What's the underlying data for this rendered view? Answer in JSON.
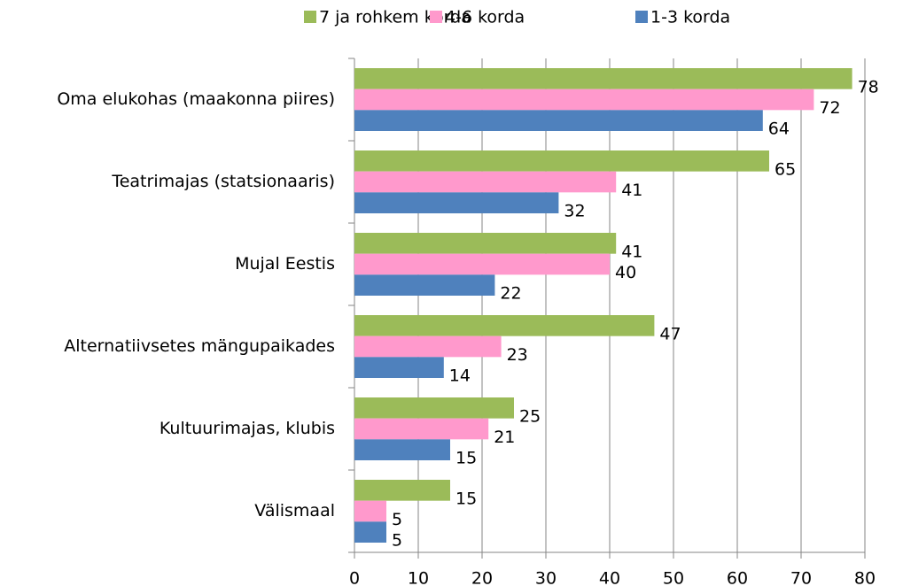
{
  "chart_data": {
    "type": "hbar",
    "categories": [
      "Oma elukohas (maakonna piires)",
      "Teatrimajas (statsionaaris)",
      "Mujal Eestis",
      "Alternatiivsetes mängupaikades",
      "Kultuurimajas, klubis",
      "Välismaal"
    ],
    "series": [
      {
        "name": "7 ja rohkem korda",
        "color": "#9bbb59",
        "values": [
          78,
          65,
          41,
          47,
          25,
          15
        ]
      },
      {
        "name": "4-6 korda",
        "color": "#ff99cc",
        "values": [
          72,
          41,
          40,
          23,
          21,
          5
        ]
      },
      {
        "name": "1-3 korda",
        "color": "#4f81bd",
        "values": [
          64,
          32,
          22,
          14,
          15,
          5
        ]
      }
    ],
    "xlim": [
      0,
      80
    ],
    "xticks": [
      0,
      10,
      20,
      30,
      40,
      50,
      60,
      70,
      80
    ],
    "grid": true,
    "legend": "top"
  }
}
